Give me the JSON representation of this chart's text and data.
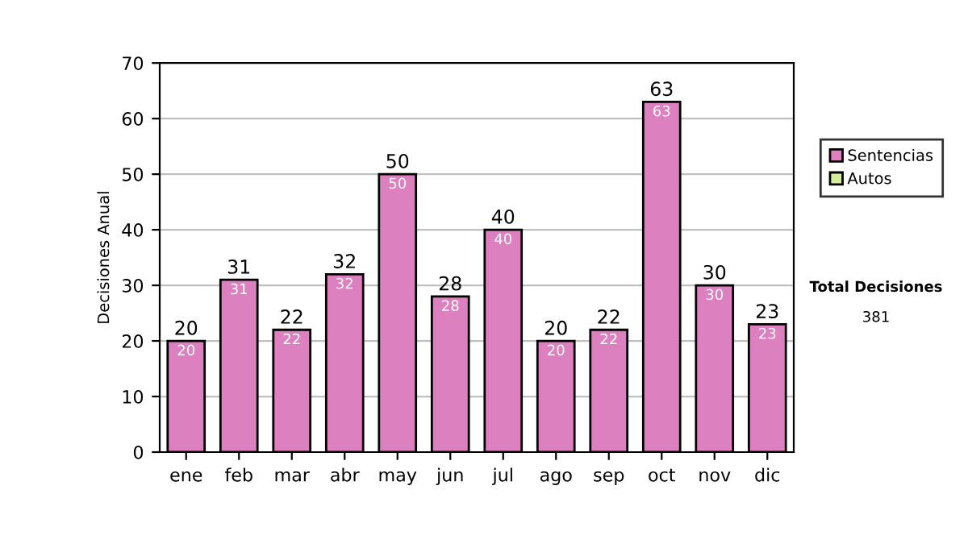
{
  "chart_data": {
    "type": "bar",
    "ylabel": "Decisiones Anual",
    "categories": [
      "ene",
      "feb",
      "mar",
      "abr",
      "may",
      "jun",
      "jul",
      "ago",
      "sep",
      "oct",
      "nov",
      "dic"
    ],
    "stacked": true,
    "series": [
      {
        "name": "Sentencias",
        "color": "#dd80c0",
        "values": [
          20,
          31,
          22,
          32,
          50,
          28,
          40,
          20,
          22,
          63,
          30,
          23
        ]
      },
      {
        "name": "Autos",
        "color": "#d4ec9c",
        "values": [
          null,
          null,
          null,
          null,
          null,
          null,
          null,
          null,
          null,
          null,
          null,
          null
        ]
      }
    ],
    "data_labels": true,
    "totals": [
      "20",
      "31",
      "22",
      "32",
      "50",
      "28",
      "40",
      "20",
      "22",
      "63",
      "30",
      "23"
    ],
    "ylim": [
      0,
      70
    ],
    "yticks": [
      0,
      10,
      20,
      30,
      40,
      50,
      60,
      70
    ],
    "grid": "y",
    "legend": "right",
    "annotations": [
      "Total Decisiones",
      "381"
    ]
  }
}
